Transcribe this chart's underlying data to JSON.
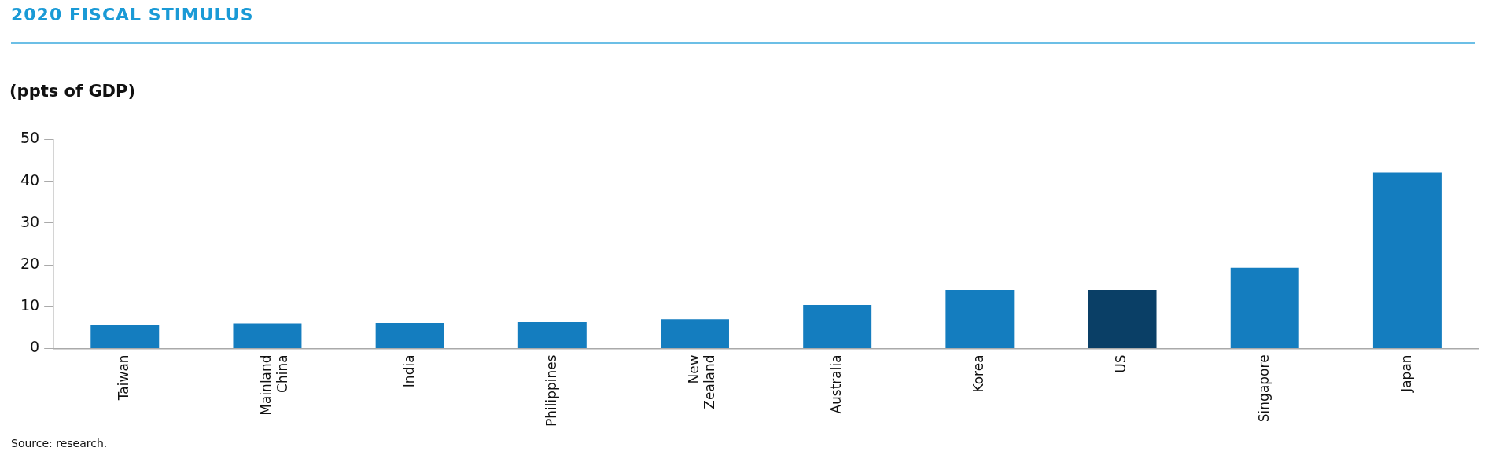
{
  "chart_data": {
    "type": "bar",
    "title": "2020 FISCAL STIMULUS",
    "ylabel": "(ppts of GDP)",
    "categories": [
      "Taiwan",
      "Mainland China",
      "India",
      "Philippines",
      "New Zealand",
      "Australia",
      "Korea",
      "US",
      "Singapore",
      "Japan"
    ],
    "values": [
      5.6,
      6.0,
      6.1,
      6.3,
      7.0,
      10.4,
      14.0,
      14.0,
      19.3,
      42.1
    ],
    "colors": [
      "#147dbf",
      "#147dbf",
      "#147dbf",
      "#147dbf",
      "#147dbf",
      "#147dbf",
      "#147dbf",
      "#0a3f66",
      "#147dbf",
      "#147dbf"
    ],
    "ylim": [
      0,
      50
    ],
    "yticks": [
      0,
      10,
      20,
      30,
      40,
      50
    ],
    "grid": false,
    "legend": false,
    "annotations": [
      "Source: research."
    ]
  }
}
